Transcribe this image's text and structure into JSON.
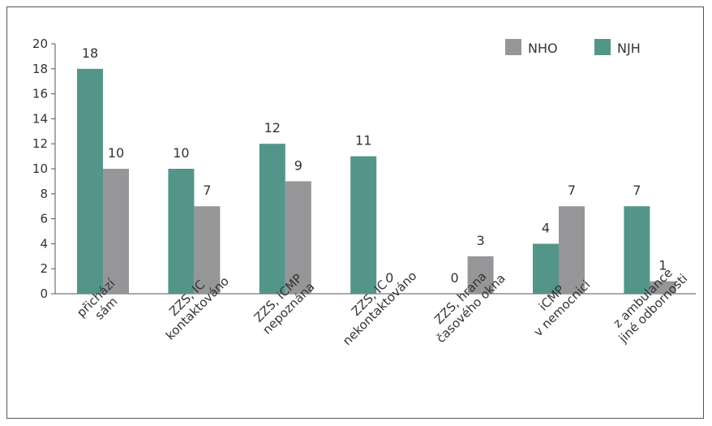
{
  "chart_data": {
    "type": "bar",
    "title": "",
    "xlabel": "",
    "ylabel": "",
    "ylim": [
      0,
      20
    ],
    "yticks": [
      0,
      2,
      4,
      6,
      8,
      10,
      12,
      14,
      16,
      18,
      20
    ],
    "grid": false,
    "legend_position": "top-right",
    "categories": [
      [
        "přichází",
        "sám"
      ],
      [
        "ZZS, IC",
        "kontaktováno"
      ],
      [
        "ZZS, iCMP",
        "nepoznána"
      ],
      [
        "ZZS, IC",
        "nekontaktováno"
      ],
      [
        "ZZS, hrana",
        "časového okna"
      ],
      [
        "iCMP",
        "v nemocnici"
      ],
      [
        "z ambulance",
        "jiné odbornosti"
      ]
    ],
    "series": [
      {
        "name": "NJH",
        "color": "#54958a",
        "values": [
          18,
          10,
          12,
          11,
          0,
          4,
          7
        ]
      },
      {
        "name": "NHO",
        "color": "#969699",
        "values": [
          10,
          7,
          9,
          0,
          3,
          7,
          1
        ]
      }
    ],
    "legend_order": [
      "NHO",
      "NJH"
    ]
  }
}
